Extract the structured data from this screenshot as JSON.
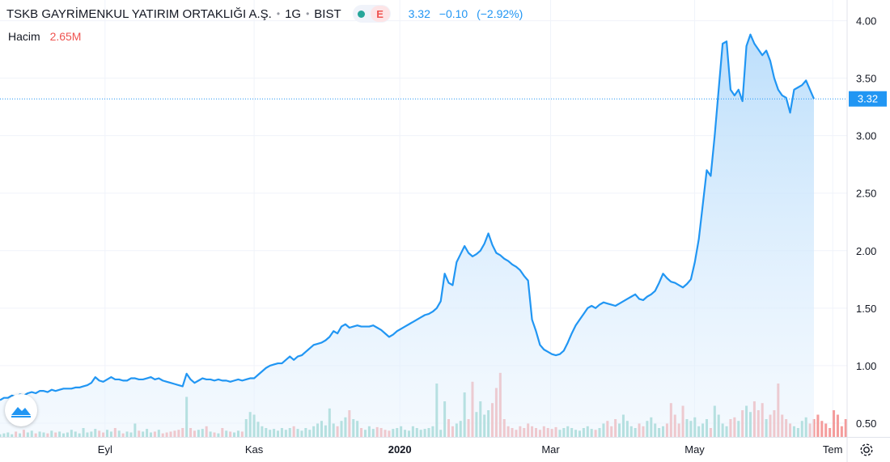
{
  "header": {
    "title": "TSKB GAYRİMENKUL YATIRIM ORTAKLIĞI A.Ş.",
    "interval": "1G",
    "exchange": "BIST",
    "market_status_icon": "green-dot-icon",
    "e_badge": "E",
    "last": "3.32",
    "change": "−0.10",
    "change_pct": "(−2.92%)"
  },
  "volume": {
    "label": "Hacim",
    "value": "2.65M"
  },
  "price_label": "3.32",
  "colors": {
    "line": "#2196f3",
    "area_top": "#b9ddfb",
    "volume_up": "#7fcbc0",
    "volume_down": "#f49c9c",
    "down": "#ef5350",
    "grid": "#f0f3fa"
  },
  "chart_data": {
    "type": "area",
    "grid": true,
    "y_range": [
      0.38,
      4.18
    ],
    "y_ticks": [
      "4.00",
      "3.50",
      "3.00",
      "2.50",
      "2.00",
      "1.50",
      "1.00",
      "0.50"
    ],
    "x_ticks": [
      "Eyl",
      "Kas",
      "2020",
      "Mar",
      "May",
      "Tem"
    ],
    "last_value": 3.32,
    "prices": [
      0.7,
      0.72,
      0.72,
      0.74,
      0.73,
      0.75,
      0.74,
      0.76,
      0.77,
      0.76,
      0.78,
      0.78,
      0.77,
      0.79,
      0.78,
      0.79,
      0.8,
      0.8,
      0.8,
      0.81,
      0.81,
      0.82,
      0.83,
      0.85,
      0.9,
      0.87,
      0.86,
      0.88,
      0.9,
      0.88,
      0.88,
      0.87,
      0.87,
      0.89,
      0.89,
      0.88,
      0.88,
      0.89,
      0.9,
      0.88,
      0.89,
      0.87,
      0.86,
      0.85,
      0.84,
      0.83,
      0.82,
      0.93,
      0.88,
      0.85,
      0.87,
      0.89,
      0.88,
      0.88,
      0.87,
      0.88,
      0.87,
      0.87,
      0.86,
      0.87,
      0.88,
      0.87,
      0.88,
      0.89,
      0.89,
      0.92,
      0.95,
      0.98,
      1.0,
      1.01,
      1.02,
      1.02,
      1.05,
      1.08,
      1.05,
      1.08,
      1.09,
      1.12,
      1.15,
      1.18,
      1.19,
      1.2,
      1.22,
      1.25,
      1.3,
      1.28,
      1.34,
      1.36,
      1.33,
      1.34,
      1.35,
      1.34,
      1.34,
      1.34,
      1.35,
      1.33,
      1.31,
      1.28,
      1.25,
      1.27,
      1.3,
      1.32,
      1.34,
      1.36,
      1.38,
      1.4,
      1.42,
      1.44,
      1.45,
      1.47,
      1.5,
      1.56,
      1.8,
      1.72,
      1.7,
      1.9,
      1.97,
      2.04,
      1.98,
      1.95,
      1.97,
      2.0,
      2.06,
      2.15,
      2.05,
      1.98,
      1.96,
      1.93,
      1.91,
      1.88,
      1.86,
      1.83,
      1.78,
      1.74,
      1.4,
      1.3,
      1.18,
      1.14,
      1.12,
      1.1,
      1.09,
      1.1,
      1.13,
      1.2,
      1.28,
      1.35,
      1.4,
      1.45,
      1.5,
      1.52,
      1.5,
      1.53,
      1.55,
      1.54,
      1.53,
      1.52,
      1.54,
      1.56,
      1.58,
      1.6,
      1.62,
      1.58,
      1.57,
      1.6,
      1.62,
      1.65,
      1.72,
      1.8,
      1.76,
      1.73,
      1.72,
      1.7,
      1.68,
      1.71,
      1.75,
      1.9,
      2.1,
      2.4,
      2.7,
      2.65,
      3.0,
      3.4,
      3.8,
      3.82,
      3.4,
      3.35,
      3.4,
      3.3,
      3.78,
      3.88,
      3.8,
      3.75,
      3.7,
      3.74,
      3.65,
      3.5,
      3.4,
      3.35,
      3.33,
      3.2,
      3.4,
      3.42,
      3.44,
      3.48,
      3.4,
      3.32
    ],
    "volumes": [
      0.03,
      0.04,
      0.05,
      0.03,
      0.06,
      0.04,
      0.08,
      0.05,
      0.07,
      0.04,
      0.06,
      0.05,
      0.04,
      0.07,
      0.05,
      0.06,
      0.04,
      0.05,
      0.08,
      0.06,
      0.04,
      0.1,
      0.05,
      0.06,
      0.09,
      0.07,
      0.05,
      0.08,
      0.06,
      0.1,
      0.07,
      0.04,
      0.06,
      0.05,
      0.15,
      0.07,
      0.06,
      0.09,
      0.05,
      0.06,
      0.08,
      0.04,
      0.05,
      0.06,
      0.07,
      0.08,
      0.1,
      0.45,
      0.1,
      0.07,
      0.08,
      0.09,
      0.12,
      0.06,
      0.05,
      0.04,
      0.1,
      0.07,
      0.06,
      0.05,
      0.07,
      0.06,
      0.2,
      0.28,
      0.25,
      0.17,
      0.12,
      0.1,
      0.08,
      0.09,
      0.07,
      0.1,
      0.08,
      0.1,
      0.12,
      0.09,
      0.07,
      0.1,
      0.08,
      0.12,
      0.15,
      0.18,
      0.13,
      0.32,
      0.15,
      0.12,
      0.18,
      0.22,
      0.3,
      0.2,
      0.18,
      0.1,
      0.08,
      0.12,
      0.09,
      0.11,
      0.1,
      0.08,
      0.07,
      0.09,
      0.1,
      0.12,
      0.08,
      0.07,
      0.12,
      0.1,
      0.08,
      0.09,
      0.1,
      0.12,
      0.6,
      0.08,
      0.4,
      0.2,
      0.12,
      0.15,
      0.18,
      0.5,
      0.2,
      0.62,
      0.28,
      0.4,
      0.25,
      0.3,
      0.38,
      0.55,
      0.72,
      0.2,
      0.12,
      0.1,
      0.08,
      0.12,
      0.1,
      0.15,
      0.12,
      0.1,
      0.08,
      0.12,
      0.1,
      0.09,
      0.11,
      0.08,
      0.1,
      0.12,
      0.1,
      0.08,
      0.07,
      0.1,
      0.12,
      0.09,
      0.08,
      0.1,
      0.15,
      0.18,
      0.12,
      0.2,
      0.15,
      0.25,
      0.18,
      0.12,
      0.1,
      0.15,
      0.12,
      0.18,
      0.22,
      0.15,
      0.1,
      0.12,
      0.15,
      0.38,
      0.25,
      0.15,
      0.35,
      0.2,
      0.18,
      0.22,
      0.12,
      0.15,
      0.2,
      0.1,
      0.35,
      0.25,
      0.15,
      0.12,
      0.2,
      0.22,
      0.18,
      0.3,
      0.35,
      0.28,
      0.4,
      0.3,
      0.38,
      0.2,
      0.25,
      0.3,
      0.6,
      0.25,
      0.2,
      0.15,
      0.12,
      0.1,
      0.18,
      0.22,
      0.15,
      0.2,
      0.25,
      0.18,
      0.15,
      0.1,
      0.3,
      0.25,
      0.12,
      0.2,
      0.15,
      0.18,
      0.3,
      0.15,
      0.2,
      0.12,
      0.1
    ]
  }
}
